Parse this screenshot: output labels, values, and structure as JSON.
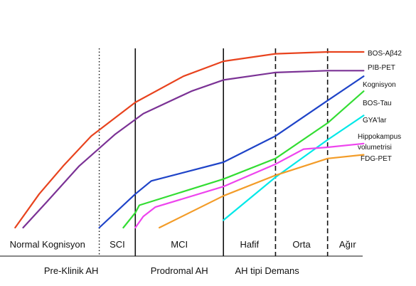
{
  "chart_data": {
    "type": "line",
    "title": "",
    "xlabel": "",
    "ylabel": "",
    "xlim": [
      0,
      100
    ],
    "ylim": [
      0,
      100
    ],
    "grid": false,
    "legend": "right (labels at line ends)",
    "stages": [
      {
        "label": "Normal Kognisyon",
        "from": 0,
        "to": 23
      },
      {
        "label": "SCI",
        "from": 23,
        "to": 32
      },
      {
        "label": "MCI",
        "from": 32,
        "to": 54
      },
      {
        "label": "Hafif",
        "from": 54,
        "to": 67
      },
      {
        "label": "Orta",
        "from": 67,
        "to": 80
      },
      {
        "label": "Ağır",
        "from": 80,
        "to": 90
      }
    ],
    "phases": [
      {
        "label": "Pre-Klinik AH",
        "from": 0,
        "to": 32
      },
      {
        "label": "Prodromal AH",
        "from": 32,
        "to": 54
      },
      {
        "label": "AH tipi Demans",
        "from": 54,
        "to": 90
      }
    ],
    "boundaries": [
      {
        "x": 23,
        "style": "dotted"
      },
      {
        "x": 32,
        "style": "solid"
      },
      {
        "x": 54,
        "style": "solid"
      },
      {
        "x": 67,
        "style": "dashed"
      },
      {
        "x": 80,
        "style": "dashed"
      }
    ],
    "series": [
      {
        "name": "BOS-Aβ42",
        "color": "#e8431e",
        "points": [
          [
            2,
            5
          ],
          [
            8,
            23
          ],
          [
            14,
            38
          ],
          [
            21,
            54
          ],
          [
            32,
            72
          ],
          [
            44,
            86
          ],
          [
            54,
            94
          ],
          [
            67,
            98
          ],
          [
            80,
            99
          ],
          [
            89,
            99
          ]
        ]
      },
      {
        "name": "PIB-PET",
        "color": "#7b3295",
        "points": [
          [
            4,
            5
          ],
          [
            10,
            19
          ],
          [
            18,
            38
          ],
          [
            27,
            55
          ],
          [
            34,
            66
          ],
          [
            46,
            78
          ],
          [
            54,
            84
          ],
          [
            67,
            88
          ],
          [
            80,
            89
          ],
          [
            89,
            89
          ]
        ]
      },
      {
        "name": "Kognisyon",
        "color": "#1f44c8",
        "points": [
          [
            23,
            5
          ],
          [
            32,
            23
          ],
          [
            36,
            30
          ],
          [
            54,
            40
          ],
          [
            67,
            54
          ],
          [
            80,
            73
          ],
          [
            89,
            86
          ]
        ]
      },
      {
        "name": "BOS-Tau",
        "color": "#33dd33",
        "points": [
          [
            29,
            5
          ],
          [
            32,
            13
          ],
          [
            33,
            17
          ],
          [
            54,
            31
          ],
          [
            67,
            42
          ],
          [
            80,
            61
          ],
          [
            89,
            78
          ]
        ]
      },
      {
        "name": "GYA'lar",
        "color": "#00e8e8",
        "points": [
          [
            54,
            9
          ],
          [
            67,
            32
          ],
          [
            80,
            52
          ],
          [
            89,
            65
          ]
        ]
      },
      {
        "name": "Hippokampus volumetrisi",
        "color": "#ee44ee",
        "points": [
          [
            32,
            5
          ],
          [
            34,
            11
          ],
          [
            37,
            16
          ],
          [
            54,
            27
          ],
          [
            67,
            39
          ],
          [
            74,
            47
          ],
          [
            80,
            48
          ],
          [
            89,
            50
          ]
        ]
      },
      {
        "name": "FDG-PET",
        "color": "#f39c28",
        "points": [
          [
            38,
            5
          ],
          [
            54,
            22
          ],
          [
            67,
            33
          ],
          [
            80,
            42
          ],
          [
            89,
            44
          ]
        ]
      }
    ],
    "series_labels": [
      {
        "text": "BOS-Aβ42"
      },
      {
        "text": "PIB-PET"
      },
      {
        "text": "Kognisyon"
      },
      {
        "text": "BOS-Tau"
      },
      {
        "text": "GYA'lar"
      },
      {
        "text": "Hippokampus"
      },
      {
        "text": "volumetrisi"
      },
      {
        "text": "FDG-PET"
      }
    ]
  }
}
